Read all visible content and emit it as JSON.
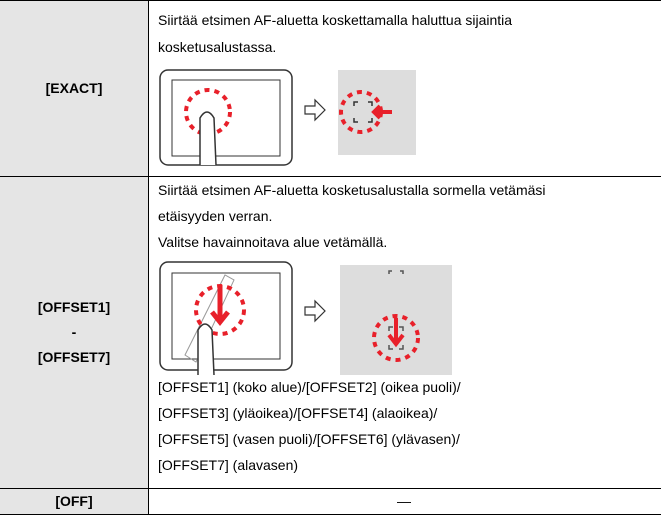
{
  "rows": [
    {
      "label": "[EXACT]",
      "lines": [
        "Siirtää etsimen AF-aluetta koskettamalla haluttua sijaintia",
        "kosketusalustassa."
      ]
    },
    {
      "label": [
        "[OFFSET1]",
        "-",
        "[OFFSET7]"
      ],
      "lines": [
        "Siirtää etsimen AF-aluetta kosketusalustalla sormella vetämäsi",
        "etäisyyden verran.",
        "Valitse havainnoitava alue vetämällä."
      ],
      "notes": [
        "[OFFSET1] (koko alue)/[OFFSET2] (oikea puoli)/",
        "[OFFSET3] (yläoikea)/[OFFSET4] (alaoikea)/",
        "[OFFSET5] (vasen puoli)/[OFFSET6] (ylävasen)/",
        "[OFFSET7] (alavasen)"
      ]
    },
    {
      "label": "[OFF]",
      "lines": [
        "—"
      ]
    }
  ]
}
